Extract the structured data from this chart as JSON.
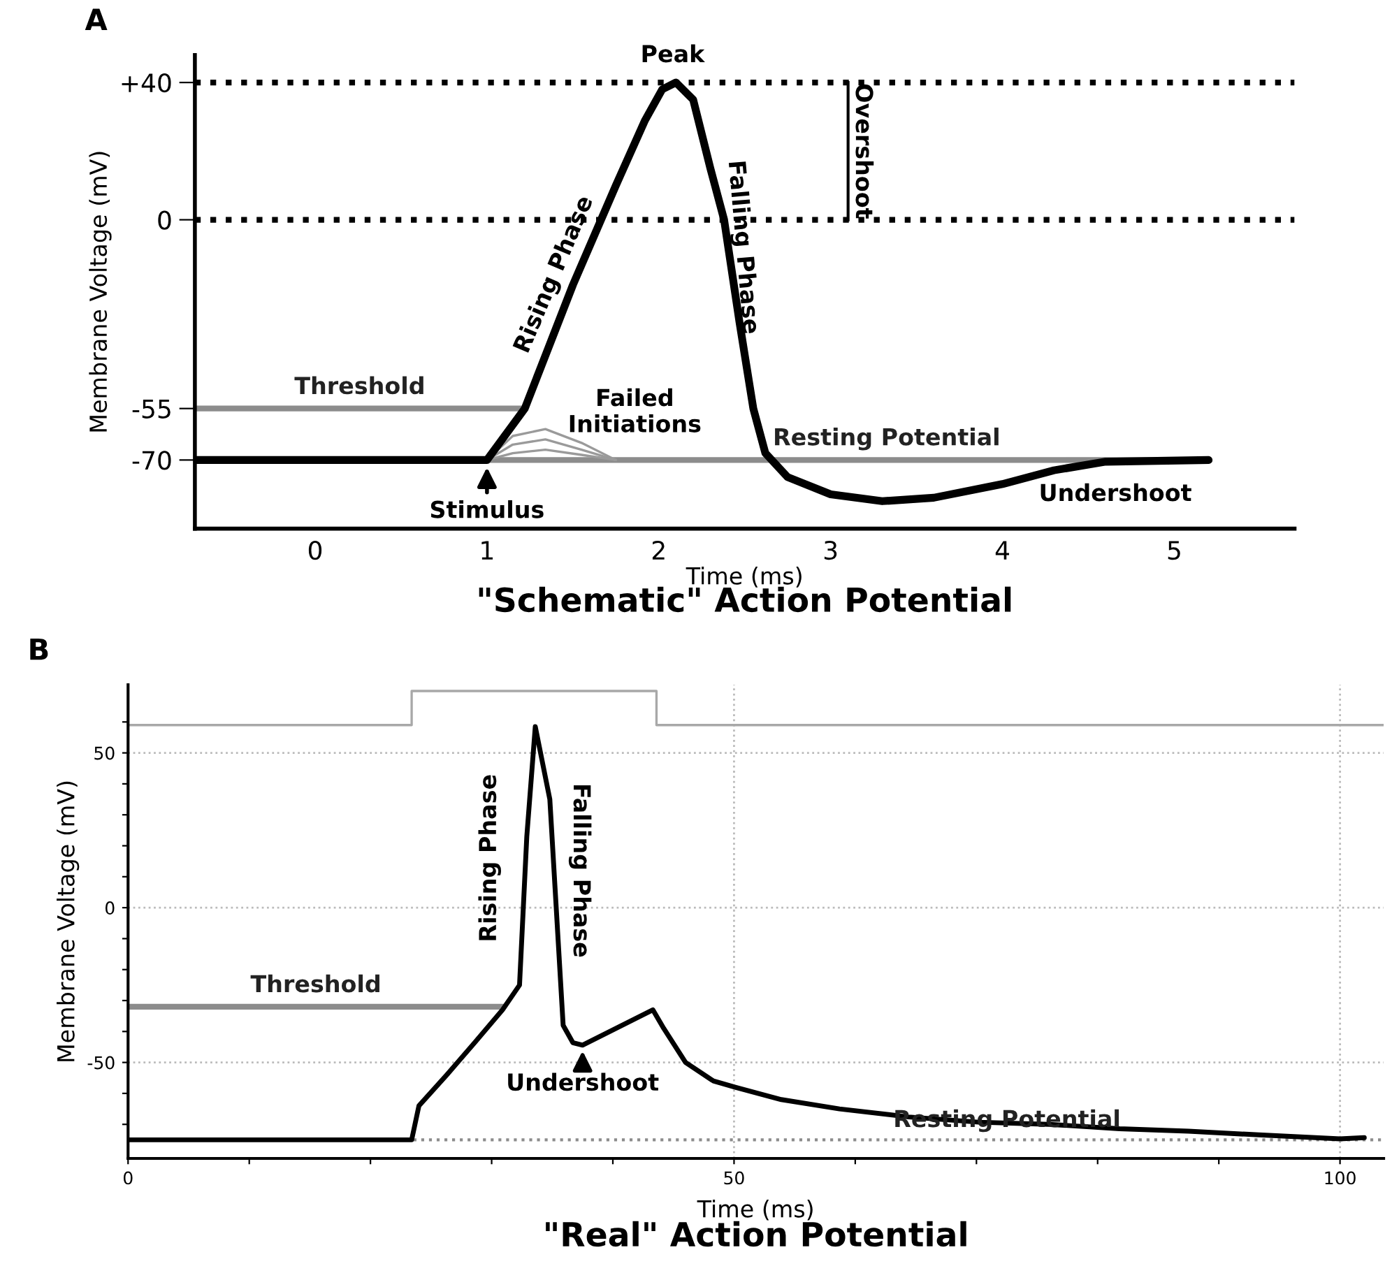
{
  "chart_data": [
    {
      "type": "line",
      "title": "\"Schematic\" Action Potential",
      "xlabel": "Time (ms)",
      "ylabel": "Membrane Voltage (mV)",
      "xlim": [
        -0.7,
        5.7
      ],
      "ylim": [
        -90,
        48
      ],
      "xticks": [
        0,
        1,
        2,
        3,
        4,
        5
      ],
      "yticks": [
        {
          "value": 40,
          "label": "+40"
        },
        0,
        -55,
        -70
      ],
      "series": [
        {
          "name": "Threshold",
          "color": "#8c8c8c",
          "x": [
            -0.7,
            1.22
          ],
          "values": [
            -55,
            -55
          ]
        },
        {
          "name": "Resting Potential",
          "color": "#8c8c8c",
          "x": [
            1.0,
            5.2
          ],
          "values": [
            -70,
            -70
          ]
        },
        {
          "color": "#9a9a9a",
          "x": [
            1.0,
            1.15,
            1.34,
            1.55,
            1.75
          ],
          "values": [
            -70,
            -63,
            -61,
            -65,
            -70
          ]
        },
        {
          "color": "#9a9a9a",
          "x": [
            1.0,
            1.15,
            1.34,
            1.55,
            1.75
          ],
          "values": [
            -70,
            -65.5,
            -64,
            -67,
            -70
          ]
        },
        {
          "color": "#9a9a9a",
          "x": [
            1.0,
            1.15,
            1.34,
            1.55,
            1.75
          ],
          "values": [
            -70,
            -68,
            -67,
            -68.5,
            -70
          ]
        },
        {
          "color": "#000000",
          "x": [
            -0.7,
            1.0,
            1.22,
            1.5,
            1.75,
            1.92,
            2.02,
            2.1,
            2.2,
            2.3,
            2.38,
            2.47,
            2.55,
            2.62,
            2.75,
            3.0,
            3.3,
            3.6,
            4.0,
            4.3,
            4.6,
            5.2
          ],
          "values": [
            -70,
            -70,
            -55,
            -19,
            10,
            29,
            38,
            40,
            35,
            15,
            0,
            -30,
            -55,
            -68,
            -75,
            -80,
            -82,
            -81,
            -77,
            -73,
            -70.5,
            -70
          ]
        }
      ],
      "ref_lines": [
        {
          "axis": "y",
          "value": 40,
          "color": "#000000",
          "line_style": "dotted"
        },
        {
          "axis": "y",
          "value": 0,
          "color": "#000000",
          "line_style": "dotted"
        }
      ],
      "annotations": [
        "A",
        {
          "text": "Peak",
          "x": 2.08,
          "y": 40
        },
        "Rising Phase",
        "Falling Phase",
        "Overshoot",
        "Failed\nInitiations",
        {
          "text": "Stimulus",
          "x": 1.0,
          "y": -70
        },
        "Undershoot"
      ],
      "line_style": "solid",
      "marker": "none",
      "grid": false,
      "legend": false
    },
    {
      "type": "line",
      "title": "\"Real\" Action Potential",
      "xlabel": "Time (ms)",
      "ylabel": "Membrane Voltage (mV)",
      "xlim": [
        0,
        103.6
      ],
      "ylim": [
        -81,
        72
      ],
      "xticks": [
        0,
        {
          "value": 10,
          "label": null
        },
        {
          "value": 20,
          "label": null
        },
        {
          "value": 30,
          "label": null
        },
        {
          "value": 40,
          "label": null
        },
        50,
        {
          "value": 60,
          "label": null
        },
        {
          "value": 70,
          "label": null
        },
        {
          "value": 80,
          "label": null
        },
        {
          "value": 90,
          "label": null
        },
        100
      ],
      "yticks": [
        {
          "value": -70,
          "label": null
        },
        {
          "value": -60,
          "label": null
        },
        -50,
        {
          "value": -40,
          "label": null
        },
        {
          "value": -30,
          "label": null
        },
        {
          "value": -20,
          "label": null
        },
        {
          "value": -10,
          "label": null
        },
        0,
        {
          "value": 10,
          "label": null
        },
        {
          "value": 20,
          "label": null
        },
        {
          "value": 30,
          "label": null
        },
        {
          "value": 40,
          "label": null
        },
        50,
        {
          "value": 60,
          "label": null
        }
      ],
      "series": [
        {
          "color": "#a8a8a8",
          "x": [
            0,
            23.4,
            23.4,
            43.6,
            43.6,
            103.6
          ],
          "values": [
            59,
            59,
            70,
            70,
            59,
            59
          ]
        },
        {
          "name": "Threshold",
          "color": "#8c8c8c",
          "x": [
            0,
            31
          ],
          "values": [
            -32,
            -32
          ]
        },
        {
          "color": "#000000",
          "x": [
            0,
            23.4,
            24.0,
            26.3,
            28.6,
            30.9,
            32.3,
            32.9,
            33.6,
            34.8,
            35.9,
            36.7,
            37.5,
            43.3,
            44.2,
            46.0,
            48.3,
            50.1,
            53.9,
            58.7,
            64.4,
            70.2,
            76.0,
            81.8,
            87.5,
            93.3,
            100,
            102
          ],
          "values": [
            -75,
            -75,
            -64,
            -54,
            -43.6,
            -33,
            -25,
            23,
            58.5,
            35,
            -38,
            -43.6,
            -44.4,
            -33,
            -39,
            -50,
            -56,
            -58,
            -62,
            -65,
            -67.6,
            -69.3,
            -70,
            -71.4,
            -72.2,
            -73.4,
            -74.7,
            -74.3
          ]
        }
      ],
      "ref_lines": [
        {
          "axis": "y",
          "value": -75,
          "label": "Resting Potential",
          "color": "#8c8c8c",
          "line_style": "dotted"
        }
      ],
      "annotations": [
        "B",
        "Rising Phase",
        "Falling Phase",
        {
          "text": "Undershoot",
          "x": 37.5,
          "y": -44
        }
      ],
      "line_style": "solid",
      "marker": "none",
      "grid": true,
      "legend": false
    }
  ]
}
